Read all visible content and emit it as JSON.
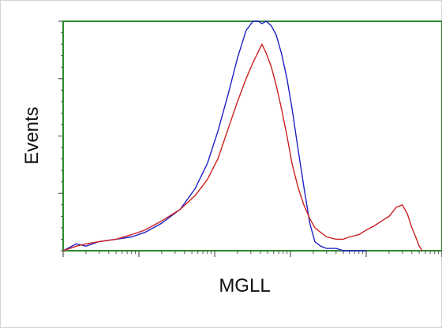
{
  "chart_data": {
    "type": "line",
    "title": "",
    "xlabel": "MGLL",
    "ylabel": "Events",
    "x_scale": "log",
    "xlim": [
      1,
      100000
    ],
    "ylim": [
      0,
      100
    ],
    "grid": false,
    "legend": "none",
    "x_tick_labels": [],
    "y_tick_labels": [],
    "series": [
      {
        "color": "#2020c8",
        "x": [
          1,
          1.5,
          2,
          3,
          5,
          8,
          12,
          20,
          35,
          55,
          80,
          110,
          150,
          200,
          260,
          320,
          380,
          420,
          480,
          560,
          650,
          760,
          900,
          1050,
          1250,
          1500,
          1800,
          2100,
          2500,
          3000,
          4000,
          5000,
          6000,
          8000,
          10000
        ],
        "y": [
          0,
          3,
          2,
          4,
          5,
          6,
          8,
          12,
          18,
          27,
          38,
          52,
          68,
          84,
          96,
          100,
          100,
          99,
          100,
          98,
          94,
          86,
          75,
          62,
          45,
          28,
          12,
          4,
          2,
          1,
          1,
          0,
          0,
          0,
          0
        ]
      },
      {
        "color": "#cc2020",
        "x": [
          1,
          1.5,
          2,
          3,
          5,
          8,
          12,
          20,
          35,
          55,
          80,
          110,
          150,
          200,
          260,
          320,
          380,
          420,
          480,
          560,
          650,
          760,
          900,
          1050,
          1250,
          1500,
          1800,
          2100,
          2500,
          3000,
          4000,
          5000,
          6000,
          8000,
          10000,
          13000,
          16000,
          20000,
          25000,
          30000,
          35000,
          40000,
          45000,
          50000,
          55000
        ],
        "y": [
          0,
          2,
          3,
          4,
          5,
          7,
          9,
          13,
          18,
          24,
          31,
          40,
          53,
          65,
          75,
          82,
          87,
          90,
          86,
          80,
          72,
          62,
          50,
          38,
          28,
          20,
          14,
          10,
          8,
          6,
          5,
          5,
          6,
          7,
          9,
          11,
          13,
          15,
          19,
          20,
          16,
          10,
          6,
          2,
          0
        ]
      }
    ]
  }
}
